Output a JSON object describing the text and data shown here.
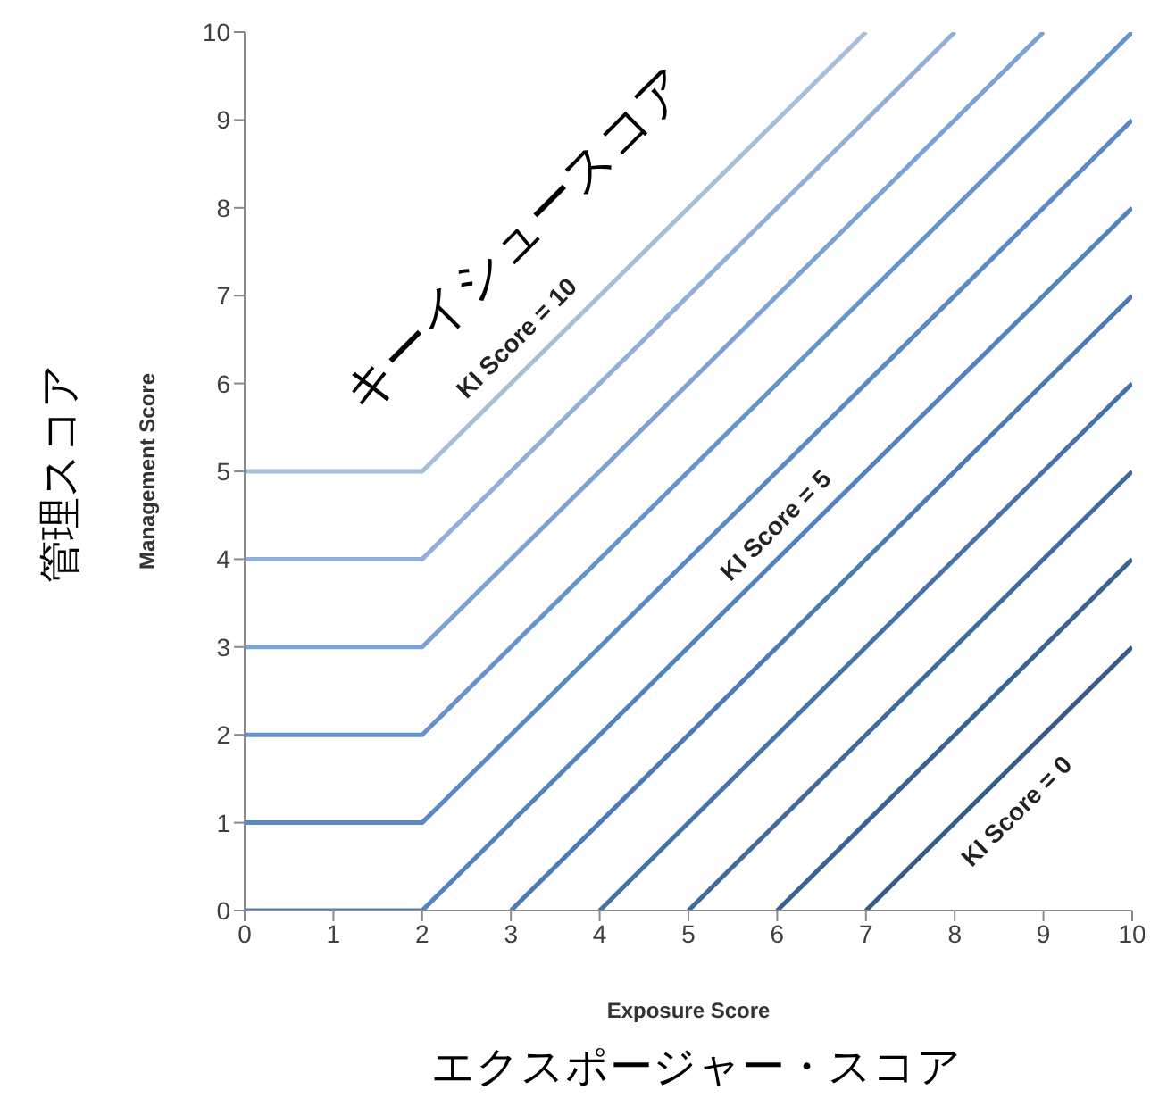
{
  "chart_data": {
    "type": "line",
    "xlabel": "Exposure Score",
    "ylabel": "Management Score",
    "xlim": [
      0,
      10
    ],
    "xticks": [
      0,
      1,
      2,
      3,
      4,
      5,
      6,
      7,
      8,
      9,
      10
    ],
    "ylim": [
      0,
      10
    ],
    "yticks": [
      0,
      1,
      2,
      3,
      4,
      5,
      6,
      7,
      8,
      9,
      10
    ],
    "grid": false,
    "marker": "none",
    "line_style": "solid",
    "series": [
      {
        "color": "#a9bddb",
        "x": [
          0,
          2,
          7
        ],
        "values": [
          5,
          5,
          10
        ]
      },
      {
        "color": "#92afd8",
        "x": [
          0,
          2,
          8
        ],
        "values": [
          4,
          4,
          10
        ]
      },
      {
        "color": "#7ca1d3",
        "x": [
          0,
          2,
          9
        ],
        "values": [
          3,
          3,
          10
        ]
      },
      {
        "color": "#6793cc",
        "x": [
          0,
          2,
          10
        ],
        "values": [
          2,
          2,
          10
        ]
      },
      {
        "color": "#5a89c6",
        "x": [
          0,
          2,
          10
        ],
        "values": [
          1,
          1,
          9
        ]
      },
      {
        "color": "#5282c0",
        "x": [
          0,
          2,
          10
        ],
        "values": [
          0,
          0,
          8
        ]
      },
      {
        "color": "#4c7ab6",
        "x": [
          3,
          10
        ],
        "values": [
          0,
          7
        ]
      },
      {
        "color": "#4672aa",
        "x": [
          4,
          10
        ],
        "values": [
          0,
          6
        ]
      },
      {
        "color": "#416a9e",
        "x": [
          5,
          10
        ],
        "values": [
          0,
          5
        ]
      },
      {
        "color": "#3c6292",
        "x": [
          6,
          10
        ],
        "values": [
          0,
          4
        ]
      },
      {
        "color": "#375a86",
        "x": [
          7,
          10
        ],
        "values": [
          0,
          3
        ]
      }
    ],
    "annotations": [
      "キーイシュースコア",
      "KI Score = 10",
      "KI Score = 5",
      "KI Score = 0",
      "管理スコア",
      "エクスポージャー・スコア"
    ]
  }
}
